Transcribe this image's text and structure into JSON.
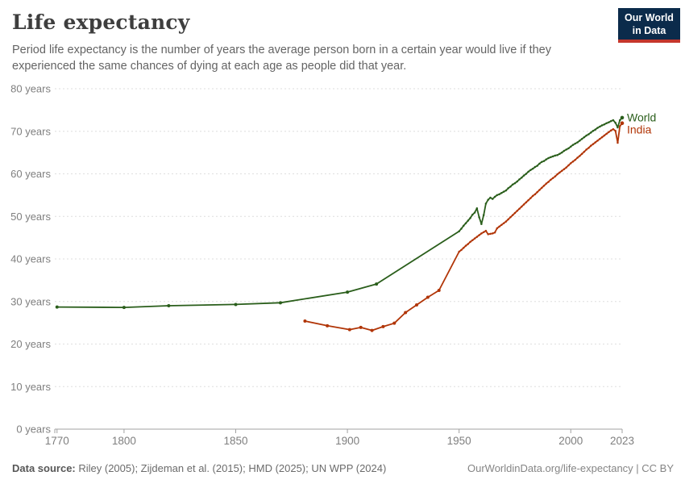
{
  "header": {
    "title": "Life expectancy",
    "subtitle_line1": "Period life expectancy is the number of years the average person born in a certain year would live if they",
    "subtitle_line2": "experienced the same chances of dying at each age as people did that year.",
    "logo_line1": "Our World",
    "logo_line2": "in Data"
  },
  "footer": {
    "source_label": "Data source:",
    "source_text": " Riley (2005); Zijdeman et al. (2015); HMD (2025); UN WPP (2024)",
    "right_text": "OurWorldinData.org/life-expectancy | CC BY"
  },
  "colors": {
    "world": "#2A5E1B",
    "india": "#B13507",
    "grid": "#dedede",
    "axis": "#a1a1a1",
    "logo_bg": "#0b2b4b",
    "logo_red": "#c5362c"
  },
  "chart_data": {
    "type": "line",
    "title": "Life expectancy",
    "xlabel": "",
    "ylabel": "",
    "grid": "dashed-horizontal",
    "legend_position": "right-end-labels",
    "x_range": [
      1769,
      2023
    ],
    "y_range": [
      0,
      80
    ],
    "x_ticks": [
      1770,
      1800,
      1850,
      1900,
      1950,
      2000,
      2023
    ],
    "y_ticks": [
      0,
      10,
      20,
      30,
      40,
      50,
      60,
      70,
      80
    ],
    "y_tick_suffix": " years",
    "series": [
      {
        "name": "World",
        "color": "#2A5E1B",
        "label_dy": 4.5,
        "points": [
          [
            1770,
            28.7
          ],
          [
            1800,
            28.6
          ],
          [
            1820,
            29.0
          ],
          [
            1850,
            29.3
          ],
          [
            1870,
            29.7
          ],
          [
            1900,
            32.2
          ],
          [
            1913,
            34.1
          ],
          [
            1950,
            46.5
          ],
          [
            1951,
            47.1
          ],
          [
            1952,
            47.8
          ],
          [
            1953,
            48.4
          ],
          [
            1954,
            49.0
          ],
          [
            1955,
            49.6
          ],
          [
            1956,
            50.4
          ],
          [
            1957,
            50.9
          ],
          [
            1958,
            51.9
          ],
          [
            1959,
            49.8
          ],
          [
            1960,
            48.2
          ],
          [
            1961,
            50.3
          ],
          [
            1962,
            53.0
          ],
          [
            1963,
            53.9
          ],
          [
            1964,
            54.4
          ],
          [
            1965,
            54.1
          ],
          [
            1966,
            54.6
          ],
          [
            1967,
            55.0
          ],
          [
            1968,
            55.2
          ],
          [
            1969,
            55.5
          ],
          [
            1970,
            55.8
          ],
          [
            1971,
            56.1
          ],
          [
            1972,
            56.6
          ],
          [
            1973,
            57.0
          ],
          [
            1974,
            57.5
          ],
          [
            1975,
            57.8
          ],
          [
            1976,
            58.2
          ],
          [
            1977,
            58.7
          ],
          [
            1978,
            59.1
          ],
          [
            1979,
            59.6
          ],
          [
            1980,
            60.0
          ],
          [
            1981,
            60.5
          ],
          [
            1982,
            60.9
          ],
          [
            1983,
            61.2
          ],
          [
            1984,
            61.6
          ],
          [
            1985,
            61.9
          ],
          [
            1986,
            62.4
          ],
          [
            1987,
            62.8
          ],
          [
            1988,
            63.0
          ],
          [
            1989,
            63.4
          ],
          [
            1990,
            63.7
          ],
          [
            1991,
            63.9
          ],
          [
            1992,
            64.1
          ],
          [
            1993,
            64.3
          ],
          [
            1994,
            64.4
          ],
          [
            1995,
            64.7
          ],
          [
            1996,
            65.0
          ],
          [
            1997,
            65.4
          ],
          [
            1998,
            65.7
          ],
          [
            1999,
            66.0
          ],
          [
            2000,
            66.4
          ],
          [
            2001,
            66.8
          ],
          [
            2002,
            67.1
          ],
          [
            2003,
            67.4
          ],
          [
            2004,
            67.8
          ],
          [
            2005,
            68.2
          ],
          [
            2006,
            68.6
          ],
          [
            2007,
            69.0
          ],
          [
            2008,
            69.3
          ],
          [
            2009,
            69.7
          ],
          [
            2010,
            70.1
          ],
          [
            2011,
            70.4
          ],
          [
            2012,
            70.8
          ],
          [
            2013,
            71.1
          ],
          [
            2014,
            71.4
          ],
          [
            2015,
            71.6
          ],
          [
            2016,
            71.9
          ],
          [
            2017,
            72.1
          ],
          [
            2018,
            72.4
          ],
          [
            2019,
            72.6
          ],
          [
            2020,
            72.0
          ],
          [
            2021,
            70.9
          ],
          [
            2022,
            72.6
          ],
          [
            2023,
            73.2
          ]
        ]
      },
      {
        "name": "India",
        "color": "#B13507",
        "label_dy": 13,
        "points": [
          [
            1881,
            25.4
          ],
          [
            1891,
            24.3
          ],
          [
            1901,
            23.4
          ],
          [
            1906,
            23.9
          ],
          [
            1911,
            23.2
          ],
          [
            1916,
            24.1
          ],
          [
            1921,
            24.9
          ],
          [
            1926,
            27.4
          ],
          [
            1931,
            29.2
          ],
          [
            1936,
            31.0
          ],
          [
            1941,
            32.6
          ],
          [
            1950,
            41.7
          ],
          [
            1951,
            42.1
          ],
          [
            1952,
            42.6
          ],
          [
            1953,
            43.1
          ],
          [
            1954,
            43.5
          ],
          [
            1955,
            44.0
          ],
          [
            1956,
            44.4
          ],
          [
            1957,
            44.8
          ],
          [
            1958,
            45.2
          ],
          [
            1959,
            45.6
          ],
          [
            1960,
            46.0
          ],
          [
            1961,
            46.3
          ],
          [
            1962,
            46.6
          ],
          [
            1963,
            45.8
          ],
          [
            1964,
            45.9
          ],
          [
            1965,
            46.0
          ],
          [
            1966,
            46.2
          ],
          [
            1967,
            47.2
          ],
          [
            1968,
            47.6
          ],
          [
            1969,
            48.0
          ],
          [
            1970,
            48.4
          ],
          [
            1971,
            48.8
          ],
          [
            1972,
            49.3
          ],
          [
            1973,
            49.8
          ],
          [
            1974,
            50.3
          ],
          [
            1975,
            50.8
          ],
          [
            1976,
            51.3
          ],
          [
            1977,
            51.8
          ],
          [
            1978,
            52.3
          ],
          [
            1979,
            52.8
          ],
          [
            1980,
            53.3
          ],
          [
            1981,
            53.8
          ],
          [
            1982,
            54.3
          ],
          [
            1983,
            54.8
          ],
          [
            1984,
            55.2
          ],
          [
            1985,
            55.7
          ],
          [
            1986,
            56.2
          ],
          [
            1987,
            56.7
          ],
          [
            1988,
            57.2
          ],
          [
            1989,
            57.7
          ],
          [
            1990,
            58.1
          ],
          [
            1991,
            58.6
          ],
          [
            1992,
            59.0
          ],
          [
            1993,
            59.4
          ],
          [
            1994,
            59.9
          ],
          [
            1995,
            60.3
          ],
          [
            1996,
            60.7
          ],
          [
            1997,
            61.1
          ],
          [
            1998,
            61.5
          ],
          [
            1999,
            62.0
          ],
          [
            2000,
            62.5
          ],
          [
            2001,
            62.9
          ],
          [
            2002,
            63.3
          ],
          [
            2003,
            63.8
          ],
          [
            2004,
            64.2
          ],
          [
            2005,
            64.7
          ],
          [
            2006,
            65.2
          ],
          [
            2007,
            65.7
          ],
          [
            2008,
            66.1
          ],
          [
            2009,
            66.6
          ],
          [
            2010,
            67.0
          ],
          [
            2011,
            67.4
          ],
          [
            2012,
            67.8
          ],
          [
            2013,
            68.2
          ],
          [
            2014,
            68.6
          ],
          [
            2015,
            69.0
          ],
          [
            2016,
            69.4
          ],
          [
            2017,
            69.8
          ],
          [
            2018,
            70.2
          ],
          [
            2019,
            70.5
          ],
          [
            2020,
            70.1
          ],
          [
            2021,
            67.3
          ],
          [
            2022,
            71.2
          ],
          [
            2023,
            71.9
          ]
        ]
      }
    ]
  }
}
